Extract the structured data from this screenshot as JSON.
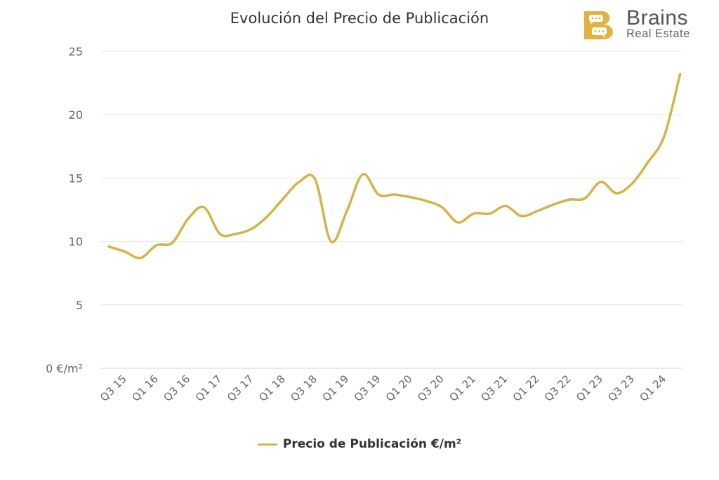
{
  "colors": {
    "series": "#d4b44a",
    "grid": "#e6e6e6",
    "axis": "#ccd6eb",
    "text": "#666666",
    "logo": "#e2b23e"
  },
  "logo": {
    "brand": "Brains",
    "sub": "Real Estate",
    "icon": "b-chat-logo-icon"
  },
  "legend": {
    "label": "Precio de Publicación €/m²"
  },
  "chart_data": {
    "type": "line",
    "title": "Evolución del Precio de Publicación",
    "xlabel": "",
    "ylabel": "",
    "ylim": [
      0,
      25
    ],
    "y_ticks": [
      0,
      5,
      10,
      15,
      20,
      25
    ],
    "y_tick_labels": [
      "0 €/m²",
      "5",
      "10",
      "15",
      "20",
      "25"
    ],
    "x_tick_labels": [
      "Q3 15",
      "Q1 16",
      "Q3 16",
      "Q1 17",
      "Q3 17",
      "Q1 18",
      "Q3 18",
      "Q1 19",
      "Q3 19",
      "Q1 20",
      "Q3 20",
      "Q1 21",
      "Q3 21",
      "Q1 22",
      "Q3 22",
      "Q1 23",
      "Q3 23",
      "Q1 24"
    ],
    "categories": [
      "Q3 15",
      "Q4 15",
      "Q1 16",
      "Q2 16",
      "Q3 16",
      "Q4 16",
      "Q1 17",
      "Q2 17",
      "Q3 17",
      "Q4 17",
      "Q1 18",
      "Q2 18",
      "Q3 18",
      "Q4 18",
      "Q1 19",
      "Q2 19",
      "Q3 19",
      "Q4 19",
      "Q1 20",
      "Q2 20",
      "Q3 20",
      "Q4 20",
      "Q1 21",
      "Q2 21",
      "Q3 21",
      "Q4 21",
      "Q1 22",
      "Q2 22",
      "Q3 22",
      "Q4 22",
      "Q1 23",
      "Q2 23",
      "Q3 23",
      "Q4 23",
      "Q1 24",
      "Q2 24",
      "Q3 24"
    ],
    "grid": true,
    "legend_position": "bottom-center",
    "series": [
      {
        "name": "Precio de Publicación €/m²",
        "values": [
          9.6,
          9.2,
          8.7,
          9.7,
          9.9,
          11.8,
          12.7,
          10.6,
          10.6,
          11.0,
          12.0,
          13.4,
          14.7,
          14.9,
          10.0,
          12.4,
          15.3,
          13.7,
          13.7,
          13.5,
          13.2,
          12.7,
          11.5,
          12.2,
          12.2,
          12.8,
          12.0,
          12.4,
          12.9,
          13.3,
          13.4,
          14.7,
          13.8,
          14.6,
          16.3,
          18.3,
          23.2
        ]
      }
    ]
  }
}
